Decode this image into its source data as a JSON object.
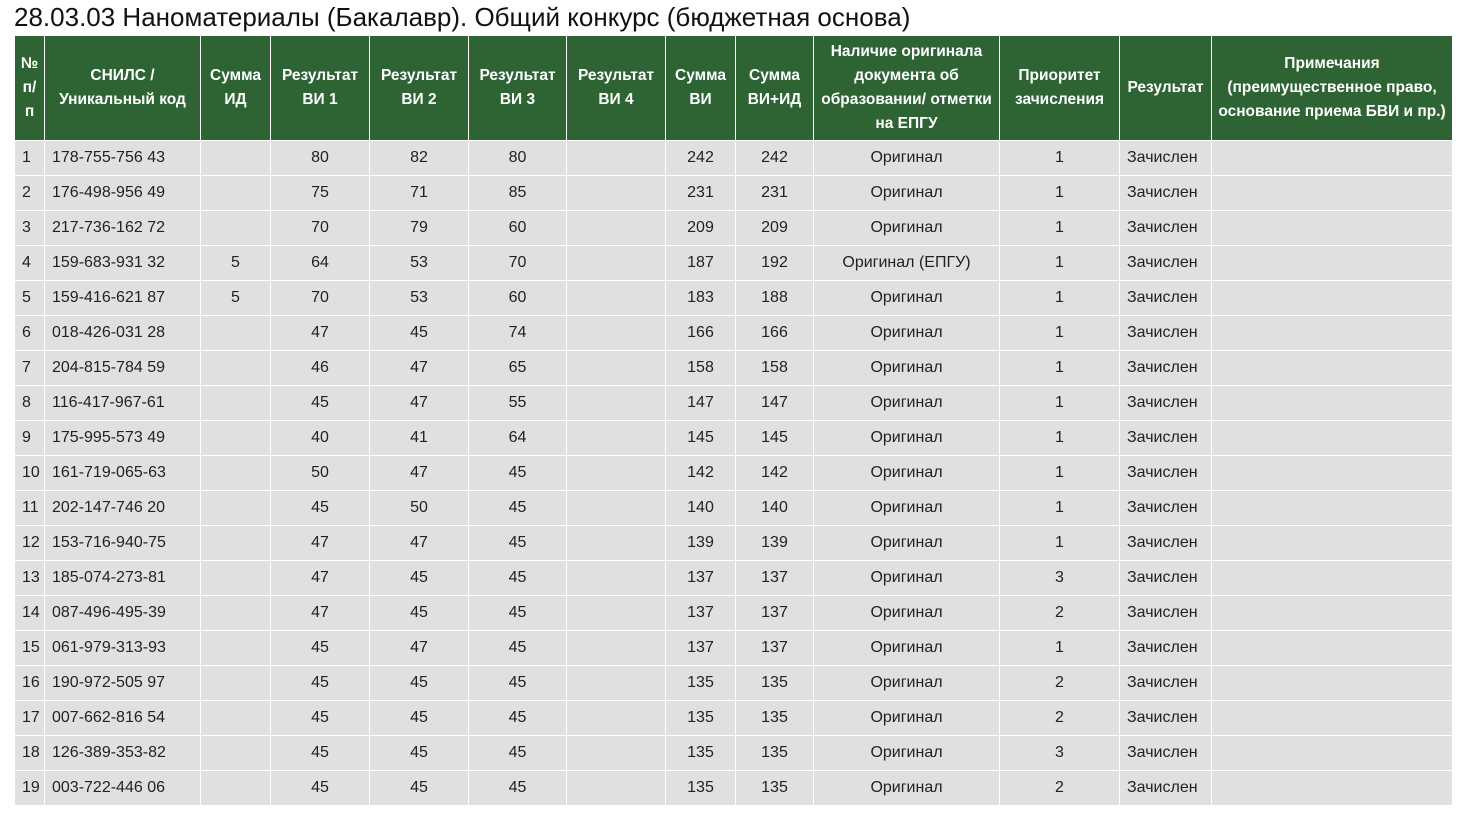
{
  "header": {
    "title": "28.03.03 Наноматериалы (Бакалавр). Общий конкурс (бюджетная основа)"
  },
  "table": {
    "columns": [
      "№ п/п",
      "СНИЛС / Уникальный код",
      "Сумма ИД",
      "Результат ВИ 1",
      "Результат ВИ 2",
      "Результат ВИ 3",
      "Результат ВИ 4",
      "Сумма ВИ",
      "Сумма ВИ+ИД",
      "Наличие оригинала документа об образовании/ отметки на ЕПГУ",
      "Приоритет зачисления",
      "Результат",
      "Примечания (преимущественное право, основание приема БВИ и пр.)"
    ],
    "rows": [
      [
        1,
        "178-755-756 43",
        null,
        80,
        82,
        80,
        null,
        242,
        242,
        "Оригинал",
        1,
        "Зачислен",
        null
      ],
      [
        2,
        "176-498-956 49",
        null,
        75,
        71,
        85,
        null,
        231,
        231,
        "Оригинал",
        1,
        "Зачислен",
        null
      ],
      [
        3,
        "217-736-162 72",
        null,
        70,
        79,
        60,
        null,
        209,
        209,
        "Оригинал",
        1,
        "Зачислен",
        null
      ],
      [
        4,
        "159-683-931 32",
        5,
        64,
        53,
        70,
        null,
        187,
        192,
        "Оригинал (ЕПГУ)",
        1,
        "Зачислен",
        null
      ],
      [
        5,
        "159-416-621 87",
        5,
        70,
        53,
        60,
        null,
        183,
        188,
        "Оригинал",
        1,
        "Зачислен",
        null
      ],
      [
        6,
        "018-426-031 28",
        null,
        47,
        45,
        74,
        null,
        166,
        166,
        "Оригинал",
        1,
        "Зачислен",
        null
      ],
      [
        7,
        "204-815-784 59",
        null,
        46,
        47,
        65,
        null,
        158,
        158,
        "Оригинал",
        1,
        "Зачислен",
        null
      ],
      [
        8,
        "116-417-967-61",
        null,
        45,
        47,
        55,
        null,
        147,
        147,
        "Оригинал",
        1,
        "Зачислен",
        null
      ],
      [
        9,
        "175-995-573 49",
        null,
        40,
        41,
        64,
        null,
        145,
        145,
        "Оригинал",
        1,
        "Зачислен",
        null
      ],
      [
        10,
        "161-719-065-63",
        null,
        50,
        47,
        45,
        null,
        142,
        142,
        "Оригинал",
        1,
        "Зачислен",
        null
      ],
      [
        11,
        "202-147-746 20",
        null,
        45,
        50,
        45,
        null,
        140,
        140,
        "Оригинал",
        1,
        "Зачислен",
        null
      ],
      [
        12,
        "153-716-940-75",
        null,
        47,
        47,
        45,
        null,
        139,
        139,
        "Оригинал",
        1,
        "Зачислен",
        null
      ],
      [
        13,
        "185-074-273-81",
        null,
        47,
        45,
        45,
        null,
        137,
        137,
        "Оригинал",
        3,
        "Зачислен",
        null
      ],
      [
        14,
        "087-496-495-39",
        null,
        47,
        45,
        45,
        null,
        137,
        137,
        "Оригинал",
        2,
        "Зачислен",
        null
      ],
      [
        15,
        "061-979-313-93",
        null,
        45,
        47,
        45,
        null,
        137,
        137,
        "Оригинал",
        1,
        "Зачислен",
        null
      ],
      [
        16,
        "190-972-505 97",
        null,
        45,
        45,
        45,
        null,
        135,
        135,
        "Оригинал",
        2,
        "Зачислен",
        null
      ],
      [
        17,
        "007-662-816 54",
        null,
        45,
        45,
        45,
        null,
        135,
        135,
        "Оригинал",
        2,
        "Зачислен",
        null
      ],
      [
        18,
        "126-389-353-82",
        null,
        45,
        45,
        45,
        null,
        135,
        135,
        "Оригинал",
        3,
        "Зачислен",
        null
      ],
      [
        19,
        "003-722-446 06",
        null,
        45,
        45,
        45,
        null,
        135,
        135,
        "Оригинал",
        2,
        "Зачислен",
        null
      ]
    ]
  }
}
